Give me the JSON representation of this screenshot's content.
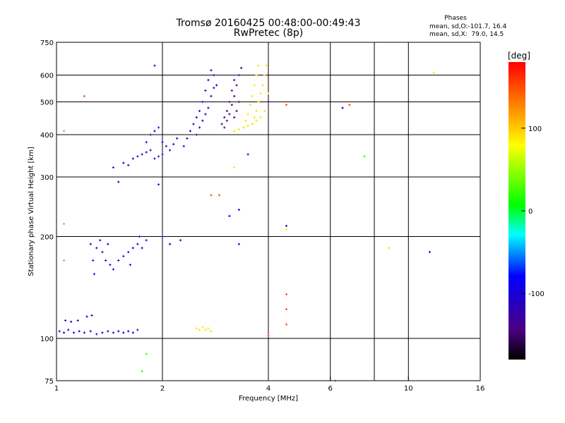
{
  "title": "Tromsø 20160425 00:48:00-00:49:43",
  "subtitle": "RwPretec (8p)",
  "phases": {
    "heading": "Phases",
    "o_line": "mean, sd,O:-101.7, 16.4",
    "x_line": "mean, sd,X:  79.0, 14.5"
  },
  "colorbar": {
    "label": "[deg]",
    "range": [
      -180,
      180
    ],
    "ticks": [
      {
        "value": 100,
        "label": "100"
      },
      {
        "value": 0,
        "label": "0"
      },
      {
        "value": -100,
        "label": "-100"
      }
    ]
  },
  "chart_data": {
    "type": "scatter",
    "title": "Tromsø 20160425 00:48:00-00:49:43",
    "subtitle": "RwPretec (8p)",
    "xlabel": "Frequency [MHz]",
    "ylabel": "Stationary phase Virtual Height [km]",
    "xscale": "log",
    "yscale": "log",
    "xlim": [
      1,
      16
    ],
    "ylim": [
      75,
      750
    ],
    "x_ticks": [
      {
        "value": 1,
        "label": "1"
      },
      {
        "value": 2,
        "label": "2"
      },
      {
        "value": 4,
        "label": "4"
      },
      {
        "value": 6,
        "label": "6"
      },
      {
        "value": 10,
        "label": "10"
      },
      {
        "value": 16,
        "label": "16"
      }
    ],
    "x_gridlines": [
      2,
      4,
      6,
      8,
      10
    ],
    "y_ticks": [
      {
        "value": 75,
        "label": "75"
      },
      {
        "value": 100,
        "label": "100"
      },
      {
        "value": 200,
        "label": "200"
      },
      {
        "value": 300,
        "label": "300"
      },
      {
        "value": 400,
        "label": "400"
      },
      {
        "value": 500,
        "label": "500"
      },
      {
        "value": 600,
        "label": "600"
      },
      {
        "value": 750,
        "label": "750"
      }
    ],
    "grid": true,
    "series": [
      {
        "colour_phase_deg": -100,
        "points": [
          [
            1.02,
            105
          ],
          [
            1.05,
            104
          ],
          [
            1.08,
            106
          ],
          [
            1.12,
            104
          ],
          [
            1.16,
            105
          ],
          [
            1.2,
            104
          ],
          [
            1.25,
            105
          ],
          [
            1.3,
            103
          ],
          [
            1.35,
            104
          ],
          [
            1.4,
            105
          ],
          [
            1.45,
            104
          ],
          [
            1.5,
            105
          ],
          [
            1.55,
            104
          ],
          [
            1.6,
            105
          ],
          [
            1.65,
            104
          ],
          [
            1.7,
            106
          ],
          [
            1.06,
            113
          ],
          [
            1.1,
            112
          ],
          [
            1.15,
            113
          ],
          [
            1.22,
            116
          ],
          [
            1.26,
            117
          ],
          [
            1.25,
            190
          ],
          [
            1.27,
            170
          ],
          [
            1.28,
            155
          ],
          [
            1.3,
            185
          ],
          [
            1.33,
            195
          ],
          [
            1.35,
            180
          ],
          [
            1.38,
            170
          ],
          [
            1.4,
            190
          ],
          [
            1.42,
            165
          ],
          [
            1.45,
            160
          ],
          [
            1.5,
            170
          ],
          [
            1.55,
            175
          ],
          [
            1.6,
            180
          ],
          [
            1.62,
            165
          ],
          [
            1.65,
            185
          ],
          [
            1.7,
            190
          ],
          [
            1.72,
            200
          ],
          [
            1.75,
            185
          ],
          [
            1.8,
            195
          ],
          [
            1.45,
            320
          ],
          [
            1.5,
            290
          ],
          [
            1.55,
            330
          ],
          [
            1.6,
            325
          ],
          [
            1.65,
            340
          ],
          [
            1.7,
            345
          ],
          [
            1.75,
            350
          ],
          [
            1.8,
            355
          ],
          [
            1.85,
            360
          ],
          [
            1.9,
            340
          ],
          [
            1.95,
            345
          ],
          [
            2.0,
            350
          ],
          [
            1.8,
            380
          ],
          [
            1.85,
            400
          ],
          [
            1.9,
            410
          ],
          [
            1.95,
            420
          ],
          [
            2.0,
            380
          ],
          [
            2.05,
            370
          ],
          [
            2.1,
            360
          ],
          [
            2.15,
            375
          ],
          [
            2.2,
            390
          ],
          [
            2.3,
            370
          ],
          [
            2.35,
            390
          ],
          [
            2.4,
            410
          ],
          [
            2.45,
            430
          ],
          [
            2.5,
            450
          ],
          [
            2.55,
            470
          ],
          [
            2.6,
            500
          ],
          [
            2.65,
            540
          ],
          [
            2.7,
            580
          ],
          [
            2.75,
            620
          ],
          [
            2.8,
            600
          ],
          [
            2.85,
            560
          ],
          [
            2.5,
            400
          ],
          [
            2.55,
            420
          ],
          [
            2.6,
            440
          ],
          [
            2.65,
            460
          ],
          [
            2.7,
            480
          ],
          [
            2.75,
            520
          ],
          [
            2.8,
            550
          ],
          [
            2.25,
            195
          ],
          [
            2.1,
            190
          ],
          [
            2.0,
            200
          ],
          [
            1.95,
            285
          ],
          [
            1.9,
            640
          ],
          [
            3.1,
            230
          ],
          [
            3.3,
            240
          ],
          [
            3.5,
            350
          ],
          [
            3.3,
            190
          ],
          [
            4.5,
            215
          ],
          [
            6.5,
            480
          ],
          [
            11.5,
            180
          ]
        ]
      },
      {
        "colour_phase_deg": -140,
        "points": [
          [
            3.0,
            420
          ],
          [
            3.05,
            440
          ],
          [
            3.1,
            460
          ],
          [
            3.15,
            490
          ],
          [
            3.2,
            520
          ],
          [
            3.25,
            560
          ],
          [
            3.3,
            600
          ],
          [
            3.35,
            630
          ],
          [
            3.3,
            500
          ],
          [
            3.25,
            470
          ],
          [
            3.2,
            450
          ],
          [
            2.95,
            430
          ],
          [
            3.0,
            450
          ],
          [
            3.05,
            470
          ],
          [
            3.1,
            500
          ],
          [
            3.15,
            540
          ],
          [
            3.2,
            580
          ]
        ]
      },
      {
        "colour_phase_deg": 90,
        "points": [
          [
            3.4,
            420
          ],
          [
            3.45,
            440
          ],
          [
            3.5,
            460
          ],
          [
            3.55,
            490
          ],
          [
            3.6,
            520
          ],
          [
            3.65,
            560
          ],
          [
            3.7,
            600
          ],
          [
            3.75,
            640
          ],
          [
            3.6,
            430
          ],
          [
            3.65,
            450
          ],
          [
            3.7,
            470
          ],
          [
            3.75,
            500
          ],
          [
            3.8,
            530
          ],
          [
            3.85,
            560
          ],
          [
            3.9,
            600
          ],
          [
            3.95,
            640
          ],
          [
            3.2,
            410
          ],
          [
            3.3,
            415
          ],
          [
            3.4,
            420
          ],
          [
            3.5,
            425
          ],
          [
            3.6,
            430
          ],
          [
            3.7,
            440
          ],
          [
            3.8,
            450
          ],
          [
            3.9,
            470
          ],
          [
            4.0,
            530
          ],
          [
            2.5,
            107
          ],
          [
            2.55,
            106
          ],
          [
            2.6,
            108
          ],
          [
            2.65,
            106
          ],
          [
            2.7,
            107
          ],
          [
            2.75,
            105
          ],
          [
            3.2,
            320
          ],
          [
            8.8,
            185
          ],
          [
            11.8,
            610
          ],
          [
            4.5,
            210
          ]
        ]
      },
      {
        "colour_phase_deg": 150,
        "points": [
          [
            1.2,
            520
          ],
          [
            4.5,
            490
          ],
          [
            6.8,
            490
          ],
          [
            6.2,
            75
          ],
          [
            4.5,
            135
          ],
          [
            4.5,
            122
          ],
          [
            4.5,
            110
          ],
          [
            2.75,
            265
          ],
          [
            2.9,
            265
          ],
          [
            4.0,
            102
          ]
        ]
      },
      {
        "colour_phase_deg": 20,
        "points": [
          [
            1.05,
            410
          ],
          [
            1.05,
            218
          ],
          [
            1.05,
            170
          ],
          [
            7.5,
            345
          ],
          [
            1.8,
            90
          ],
          [
            1.75,
            80
          ]
        ]
      }
    ]
  }
}
